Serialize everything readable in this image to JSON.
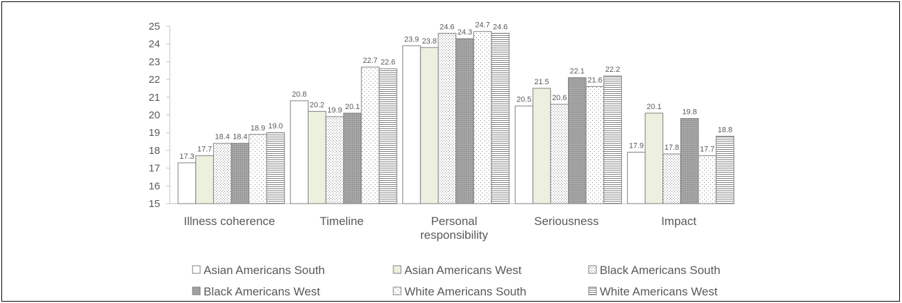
{
  "chart_data": {
    "type": "bar",
    "categories": [
      "Illness coherence",
      "Timeline",
      "Personal responsibility",
      "Seriousness",
      "Impact"
    ],
    "category_lines": [
      [
        "Illness coherence"
      ],
      [
        "Timeline"
      ],
      [
        "Personal",
        "responsibility"
      ],
      [
        "Seriousness"
      ],
      [
        "Impact"
      ]
    ],
    "ylim": [
      15,
      25
    ],
    "yticks": [
      15,
      16,
      17,
      18,
      19,
      20,
      21,
      22,
      23,
      24,
      25
    ],
    "grid": false,
    "legend_position": "bottom",
    "series": [
      {
        "name": "Asian Americans South",
        "values": [
          17.3,
          20.8,
          23.9,
          20.5,
          17.9
        ],
        "labels": [
          "17.3",
          "20.8",
          "23.9",
          "20.5",
          "17.9"
        ],
        "fill": "#ffffff",
        "pattern": "none"
      },
      {
        "name": "Asian Americans West",
        "values": [
          17.7,
          20.2,
          23.8,
          21.5,
          20.1
        ],
        "labels": [
          "17.7",
          "20.2",
          "23.8",
          "21.5",
          "20.1"
        ],
        "fill": "#ebf1de",
        "pattern": "none"
      },
      {
        "name": "Black Americans South",
        "values": [
          18.4,
          19.9,
          24.6,
          20.6,
          17.8
        ],
        "labels": [
          "18.4",
          "19.9",
          "24.6",
          "20.6",
          "17.8"
        ],
        "fill": "#ffffff",
        "pattern": "dots"
      },
      {
        "name": "Black Americans West",
        "values": [
          18.4,
          20.1,
          24.3,
          22.1,
          19.8
        ],
        "labels": [
          "18.4",
          "20.1",
          "24.3",
          "22.1",
          "19.8"
        ],
        "fill": "#a6a6a6",
        "pattern": "dark-dots"
      },
      {
        "name": "White Americans South",
        "values": [
          18.9,
          22.7,
          24.7,
          21.6,
          17.7
        ],
        "labels": [
          "18.9",
          "22.7",
          "24.7",
          "21.6",
          "17.7"
        ],
        "fill": "#ffffff",
        "pattern": "sparse-dots"
      },
      {
        "name": "White Americans West",
        "values": [
          19.0,
          22.6,
          24.6,
          22.2,
          18.8
        ],
        "labels": [
          "19.0",
          "22.6",
          "24.6",
          "22.2",
          "18.8"
        ],
        "fill": "#ffffff",
        "pattern": "hlines"
      }
    ]
  }
}
